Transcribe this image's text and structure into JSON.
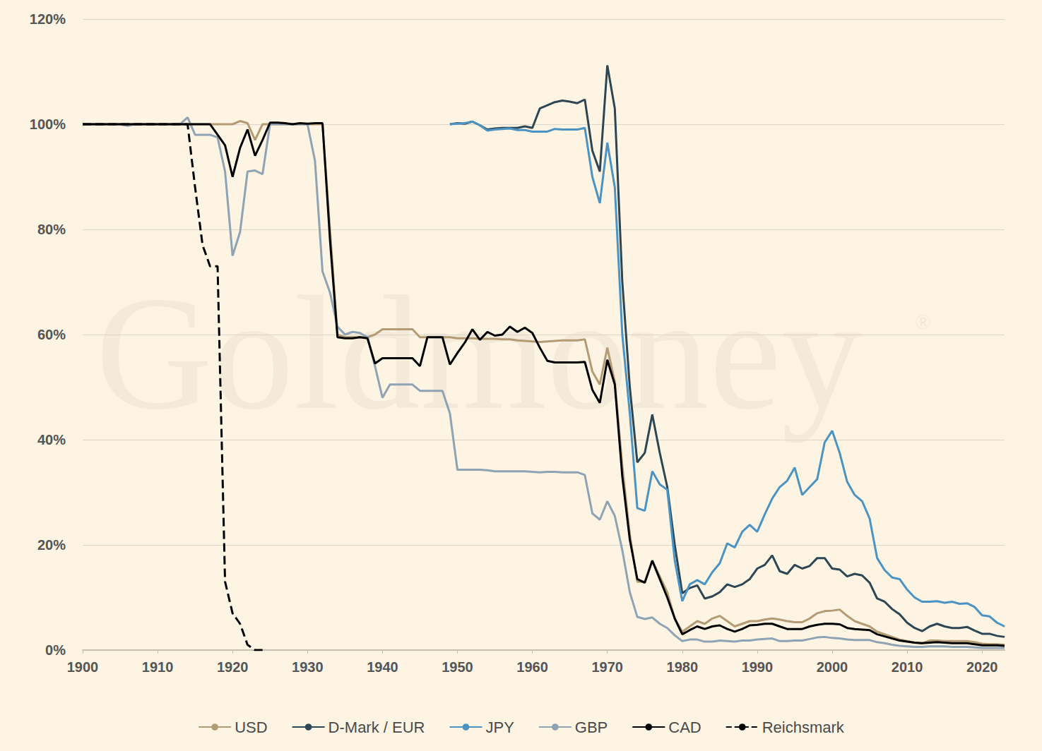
{
  "chart_data": {
    "type": "line",
    "grid": true,
    "legend": "bottom",
    "annotations": [
      "Goldmoney",
      "®"
    ],
    "xlim": [
      1900,
      2023
    ],
    "xticks": [
      1900,
      1910,
      1920,
      1930,
      1940,
      1950,
      1960,
      1970,
      1980,
      1990,
      2000,
      2010,
      2020
    ],
    "ylim": [
      0,
      120
    ],
    "yticks": [
      {
        "value": 0,
        "label": "0%"
      },
      {
        "value": 20,
        "label": "20%"
      },
      {
        "value": 40,
        "label": "40%"
      },
      {
        "value": 60,
        "label": "60%"
      },
      {
        "value": 80,
        "label": "80%"
      },
      {
        "value": 100,
        "label": "100%"
      },
      {
        "value": 120,
        "label": "120%"
      }
    ],
    "x": [
      1900,
      1901,
      1902,
      1903,
      1904,
      1905,
      1906,
      1907,
      1908,
      1909,
      1910,
      1911,
      1912,
      1913,
      1914,
      1915,
      1916,
      1917,
      1918,
      1919,
      1920,
      1921,
      1922,
      1923,
      1924,
      1925,
      1926,
      1927,
      1928,
      1929,
      1930,
      1931,
      1932,
      1933,
      1934,
      1935,
      1936,
      1937,
      1938,
      1939,
      1940,
      1941,
      1942,
      1943,
      1944,
      1945,
      1946,
      1947,
      1948,
      1949,
      1950,
      1951,
      1952,
      1953,
      1954,
      1955,
      1956,
      1957,
      1958,
      1959,
      1960,
      1961,
      1962,
      1963,
      1964,
      1965,
      1966,
      1967,
      1968,
      1969,
      1970,
      1971,
      1972,
      1973,
      1974,
      1975,
      1976,
      1977,
      1978,
      1979,
      1980,
      1981,
      1982,
      1983,
      1984,
      1985,
      1986,
      1987,
      1988,
      1989,
      1990,
      1991,
      1992,
      1993,
      1994,
      1995,
      1996,
      1997,
      1998,
      1999,
      2000,
      2001,
      2002,
      2003,
      2004,
      2005,
      2006,
      2007,
      2008,
      2009,
      2010,
      2011,
      2012,
      2013,
      2014,
      2015,
      2016,
      2017,
      2018,
      2019,
      2020,
      2021,
      2022,
      2023
    ],
    "series": [
      {
        "name": "USD",
        "color": "#b39b73",
        "line_style": "solid",
        "values": [
          100,
          100,
          100,
          100,
          100,
          100,
          100,
          100,
          100,
          100,
          100,
          100,
          100,
          100,
          100,
          100,
          100,
          100,
          100,
          100,
          100,
          100.6,
          100.2,
          97,
          100,
          100,
          100,
          100,
          100,
          100,
          100,
          100,
          100,
          80,
          60,
          59.5,
          59.5,
          59.5,
          59.5,
          60,
          61,
          61,
          61,
          61,
          61,
          59.5,
          59.5,
          59.5,
          59.5,
          59.5,
          59.3,
          59.3,
          59.3,
          59.2,
          59.2,
          59.2,
          59.1,
          59.1,
          58.9,
          58.8,
          58.7,
          58.6,
          58.7,
          58.8,
          58.9,
          58.9,
          58.9,
          59.1,
          53,
          50.5,
          57.5,
          51,
          35,
          22,
          13,
          13,
          17,
          14,
          11,
          6,
          3.5,
          4.5,
          5.5,
          5,
          6,
          6.5,
          5.5,
          4.5,
          5,
          5.5,
          5.5,
          5.8,
          6,
          5.8,
          5.5,
          5.3,
          5.3,
          6,
          7,
          7.4,
          7.5,
          7.7,
          6.5,
          5.5,
          5,
          4.5,
          3.5,
          3,
          2.5,
          2,
          1.7,
          1.4,
          1.3,
          1.8,
          1.8,
          1.7,
          1.7,
          1.7,
          1.7,
          1.5,
          1.2,
          1.1,
          1.1,
          1.0
        ]
      },
      {
        "name": "D-Mark / EUR",
        "color": "#2d4654",
        "line_style": "solid",
        "values": [
          null,
          null,
          null,
          null,
          null,
          null,
          null,
          null,
          null,
          null,
          null,
          null,
          null,
          null,
          null,
          null,
          null,
          null,
          null,
          null,
          null,
          null,
          null,
          null,
          null,
          null,
          null,
          null,
          null,
          null,
          null,
          null,
          null,
          null,
          null,
          null,
          null,
          null,
          null,
          null,
          null,
          null,
          null,
          null,
          null,
          null,
          null,
          null,
          null,
          100,
          100.2,
          100.1,
          100.5,
          99.8,
          99,
          99.2,
          99.3,
          99.3,
          99.3,
          99.6,
          99.3,
          103,
          103.6,
          104.2,
          104.5,
          104.3,
          104,
          104.7,
          95,
          91,
          111.2,
          103,
          70,
          50,
          35.7,
          37.5,
          44.8,
          37.5,
          31,
          20,
          10.8,
          11.8,
          12.3,
          9.8,
          10.2,
          11,
          12.5,
          12,
          12.5,
          13.5,
          15.5,
          16.2,
          18,
          15,
          14.5,
          16.2,
          15.5,
          16,
          17.5,
          17.5,
          15.5,
          15.3,
          14,
          14.5,
          14.2,
          12.8,
          9.8,
          9.2,
          7.8,
          6.8,
          5.2,
          4.2,
          3.6,
          4.5,
          5,
          4.5,
          4.2,
          4.2,
          4.4,
          3.7,
          3.1,
          3.1,
          2.7,
          2.5
        ]
      },
      {
        "name": "JPY",
        "color": "#4b93c3",
        "line_style": "solid",
        "values": [
          null,
          null,
          null,
          null,
          null,
          null,
          null,
          null,
          null,
          null,
          null,
          null,
          null,
          null,
          null,
          null,
          null,
          null,
          null,
          null,
          null,
          null,
          null,
          null,
          null,
          null,
          null,
          null,
          null,
          null,
          null,
          null,
          null,
          null,
          null,
          null,
          null,
          null,
          null,
          null,
          null,
          null,
          null,
          null,
          null,
          null,
          null,
          null,
          null,
          100,
          100.1,
          100.2,
          100.5,
          99.8,
          98.8,
          99,
          99.1,
          99.2,
          98.9,
          98.9,
          98.6,
          98.6,
          98.6,
          99.1,
          99,
          99,
          99,
          99.3,
          90,
          85,
          96.5,
          88,
          60,
          45,
          27,
          26.5,
          34,
          31.5,
          30.5,
          17,
          9.3,
          12.5,
          13.3,
          12.5,
          14.8,
          16.5,
          20.3,
          19.5,
          22.5,
          23.8,
          22.5,
          25.8,
          28.8,
          31,
          32.2,
          34.7,
          29.5,
          31,
          32.5,
          39.5,
          41.7,
          37.5,
          32,
          29.5,
          28.3,
          25,
          17.5,
          15.2,
          13.8,
          13.5,
          11.5,
          10,
          9.2,
          9.2,
          9.3,
          9,
          9.2,
          8.8,
          8.9,
          8.2,
          6.6,
          6.4,
          5.2,
          4.5
        ]
      },
      {
        "name": "GBP",
        "color": "#8ea3b3",
        "line_style": "solid",
        "values": [
          100,
          100,
          100,
          100,
          100,
          100,
          99.7,
          100,
          100,
          100,
          100,
          100,
          100,
          100,
          101.3,
          98,
          98,
          98,
          97.5,
          91,
          75,
          79.5,
          91,
          91.2,
          90.5,
          100,
          100,
          100,
          100,
          100,
          100,
          93,
          72,
          68,
          61.5,
          60,
          60.5,
          60.3,
          59.5,
          54,
          48,
          50.5,
          50.5,
          50.5,
          50.5,
          49.3,
          49.3,
          49.3,
          49.3,
          45,
          34.3,
          34.3,
          34.3,
          34.3,
          34.2,
          34,
          34,
          34,
          34,
          34,
          33.9,
          33.8,
          33.9,
          33.9,
          33.8,
          33.8,
          33.8,
          33.3,
          26,
          24.8,
          28.3,
          25.5,
          19,
          11,
          6.3,
          5.9,
          6.2,
          5,
          4.2,
          2.8,
          1.7,
          2,
          2,
          1.6,
          1.6,
          1.8,
          1.7,
          1.6,
          1.8,
          1.8,
          2,
          2.1,
          2.2,
          1.7,
          1.7,
          1.8,
          1.8,
          2.1,
          2.4,
          2.5,
          2.3,
          2.2,
          2,
          1.9,
          1.9,
          1.9,
          1.5,
          1.3,
          1,
          0.8,
          0.7,
          0.6,
          0.6,
          0.7,
          0.7,
          0.7,
          0.6,
          0.6,
          0.6,
          0.5,
          0.4,
          0.4,
          0.4,
          0.4
        ]
      },
      {
        "name": "CAD",
        "color": "#000000",
        "line_style": "solid",
        "values": [
          100,
          100,
          100,
          100,
          100,
          100,
          100,
          100,
          100,
          100,
          100,
          100,
          100,
          100,
          100,
          100,
          100,
          100,
          98,
          96,
          90,
          95.5,
          99,
          94,
          97,
          100.3,
          100.3,
          100.2,
          100,
          100.2,
          100.1,
          100.2,
          100.2,
          78,
          59.5,
          59.3,
          59.3,
          59.5,
          59.3,
          54.5,
          55.5,
          55.5,
          55.5,
          55.5,
          55.5,
          54,
          59.5,
          59.5,
          59.5,
          54.3,
          56.5,
          58.5,
          61,
          59,
          60.5,
          59.8,
          60,
          61.5,
          60.5,
          61.3,
          60.3,
          57.5,
          55,
          54.7,
          54.7,
          54.7,
          54.7,
          54.8,
          49.5,
          47,
          55.2,
          50.5,
          33,
          21,
          13.5,
          12.8,
          17,
          13.5,
          10,
          6,
          3,
          3.8,
          4.5,
          4,
          4.5,
          4.7,
          4,
          3.5,
          4,
          4.7,
          4.8,
          5,
          5,
          4.5,
          4,
          4,
          4,
          4.5,
          4.8,
          5,
          5,
          4.9,
          4.2,
          4,
          3.9,
          3.8,
          3,
          2.6,
          2.2,
          1.8,
          1.6,
          1.4,
          1.3,
          1.4,
          1.5,
          1.4,
          1.3,
          1.3,
          1.3,
          1.1,
          0.9,
          0.9,
          0.9,
          0.8
        ]
      },
      {
        "name": "Reichsmark",
        "color": "#000000",
        "line_style": "dashed",
        "values": [
          100,
          100,
          100,
          100,
          100,
          100,
          100,
          100,
          100,
          100,
          100,
          100,
          100,
          100,
          100,
          88,
          77,
          73,
          73,
          13,
          7,
          5,
          1,
          0,
          0,
          null,
          null,
          null,
          null,
          null,
          null,
          null,
          null,
          null,
          null,
          null,
          null,
          null,
          null,
          null,
          null,
          null,
          null,
          null,
          null,
          null,
          null,
          null,
          null,
          null,
          null,
          null,
          null,
          null,
          null,
          null,
          null,
          null,
          null,
          null,
          null,
          null,
          null,
          null,
          null,
          null,
          null,
          null,
          null,
          null,
          null,
          null,
          null,
          null,
          null,
          null,
          null,
          null,
          null,
          null,
          null,
          null,
          null,
          null,
          null,
          null,
          null,
          null,
          null,
          null,
          null,
          null,
          null,
          null,
          null,
          null,
          null,
          null,
          null,
          null,
          null,
          null,
          null,
          null,
          null,
          null,
          null,
          null,
          null,
          null,
          null,
          null,
          null,
          null,
          null,
          null,
          null,
          null,
          null,
          null,
          null,
          null,
          null,
          null
        ]
      }
    ]
  }
}
